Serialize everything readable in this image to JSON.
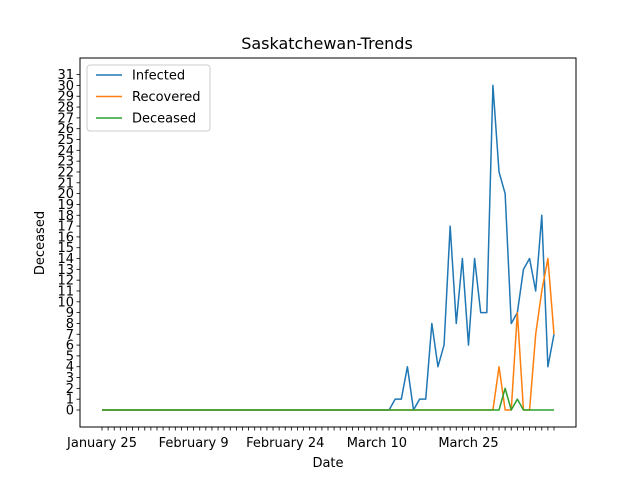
{
  "chart_data": {
    "type": "line",
    "title": "Saskatchewan-Trends",
    "xlabel": "Date",
    "ylabel": "Deceased",
    "x_tick_labels": [
      "January 25",
      "February 9",
      "February 24",
      "March 10",
      "March 25"
    ],
    "x_start_date": "2020-01-25",
    "x_end_date": "2020-04-08",
    "ylim": [
      0,
      31
    ],
    "grid": false,
    "legend_position": "upper-left",
    "series": [
      {
        "name": "Infected",
        "color": "#1f77b4",
        "points": [
          [
            "2020-01-25",
            0
          ],
          [
            "2020-03-12",
            0
          ],
          [
            "2020-03-13",
            1
          ],
          [
            "2020-03-14",
            1
          ],
          [
            "2020-03-15",
            4
          ],
          [
            "2020-03-16",
            0
          ],
          [
            "2020-03-17",
            1
          ],
          [
            "2020-03-18",
            1
          ],
          [
            "2020-03-19",
            8
          ],
          [
            "2020-03-20",
            4
          ],
          [
            "2020-03-21",
            6
          ],
          [
            "2020-03-22",
            17
          ],
          [
            "2020-03-23",
            8
          ],
          [
            "2020-03-24",
            14
          ],
          [
            "2020-03-25",
            6
          ],
          [
            "2020-03-26",
            14
          ],
          [
            "2020-03-27",
            9
          ],
          [
            "2020-03-28",
            9
          ],
          [
            "2020-03-29",
            30
          ],
          [
            "2020-03-30",
            22
          ],
          [
            "2020-03-31",
            20
          ],
          [
            "2020-04-01",
            8
          ],
          [
            "2020-04-02",
            9
          ],
          [
            "2020-04-03",
            13
          ],
          [
            "2020-04-04",
            14
          ],
          [
            "2020-04-05",
            11
          ],
          [
            "2020-04-06",
            18
          ],
          [
            "2020-04-07",
            4
          ],
          [
            "2020-04-08",
            7
          ]
        ]
      },
      {
        "name": "Recovered",
        "color": "#ff7f0e",
        "points": [
          [
            "2020-01-25",
            0
          ],
          [
            "2020-03-29",
            0
          ],
          [
            "2020-03-30",
            4
          ],
          [
            "2020-03-31",
            0
          ],
          [
            "2020-04-01",
            0
          ],
          [
            "2020-04-02",
            9
          ],
          [
            "2020-04-03",
            0
          ],
          [
            "2020-04-04",
            0
          ],
          [
            "2020-04-05",
            7
          ],
          [
            "2020-04-06",
            11
          ],
          [
            "2020-04-07",
            14
          ],
          [
            "2020-04-08",
            7
          ]
        ]
      },
      {
        "name": "Deceased",
        "color": "#2ca02c",
        "points": [
          [
            "2020-01-25",
            0
          ],
          [
            "2020-03-30",
            0
          ],
          [
            "2020-03-31",
            2
          ],
          [
            "2020-04-01",
            0
          ],
          [
            "2020-04-02",
            1
          ],
          [
            "2020-04-03",
            0
          ],
          [
            "2020-04-08",
            0
          ]
        ]
      }
    ]
  }
}
